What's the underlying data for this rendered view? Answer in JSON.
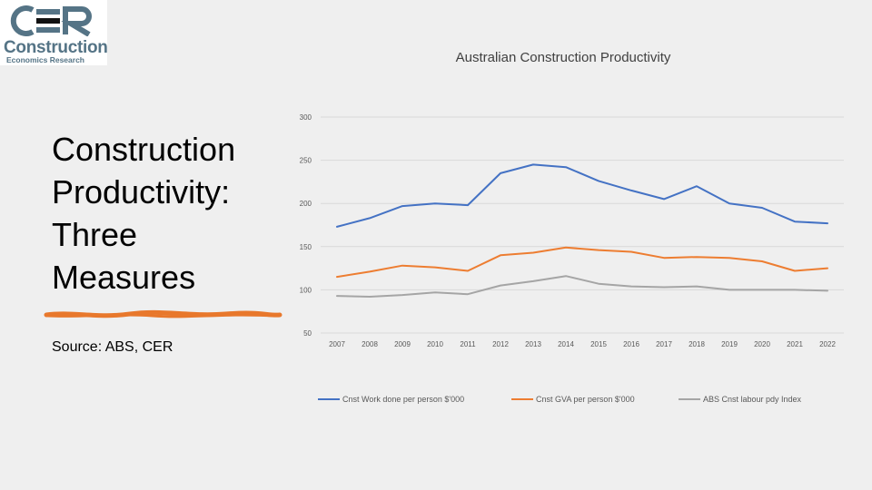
{
  "logo": {
    "mark_text": "CER",
    "line1": "Construction",
    "line2": "Economics Research",
    "brand_color": "#557486"
  },
  "slide": {
    "title_lines": [
      "Construction",
      "Productivity:",
      "Three",
      "Measures"
    ],
    "source": "Source: ABS, CER",
    "underline_color": "#e8782c"
  },
  "chart_data": {
    "type": "line",
    "title": "Australian Construction Productivity",
    "xlabel": "",
    "ylabel": "",
    "ylim": [
      50,
      300
    ],
    "yticks": [
      50,
      100,
      150,
      200,
      250,
      300
    ],
    "grid": true,
    "legend_position": "bottom",
    "categories": [
      "2007",
      "2008",
      "2009",
      "2010",
      "2011",
      "2012",
      "2013",
      "2014",
      "2015",
      "2016",
      "2017",
      "2018",
      "2019",
      "2020",
      "2021",
      "2022"
    ],
    "series": [
      {
        "name": "Cnst Work done per person $'000",
        "color": "#4472c4",
        "values": [
          173,
          183,
          197,
          200,
          198,
          235,
          245,
          242,
          226,
          215,
          205,
          220,
          200,
          195,
          179,
          177
        ]
      },
      {
        "name": "Cnst GVA per person $'000",
        "color": "#ed7d31",
        "values": [
          115,
          121,
          128,
          126,
          122,
          140,
          143,
          149,
          146,
          144,
          137,
          138,
          137,
          133,
          122,
          125
        ]
      },
      {
        "name": "ABS Cnst labour pdy Index",
        "color": "#a5a5a5",
        "values": [
          93,
          92,
          94,
          97,
          95,
          105,
          110,
          116,
          107,
          104,
          103,
          104,
          100,
          100,
          100,
          99
        ]
      }
    ]
  }
}
